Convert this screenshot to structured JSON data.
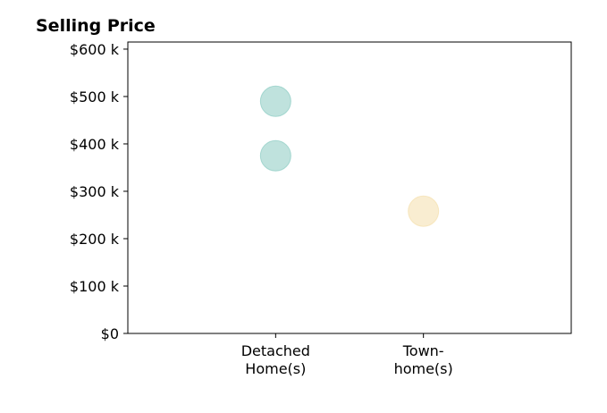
{
  "chart_data": {
    "type": "scatter",
    "title": "Selling Price",
    "xlabel": "",
    "ylabel": "",
    "categories": [
      [
        "Detached",
        "Home(s)"
      ],
      [
        "Town-",
        "home(s)"
      ]
    ],
    "xlim": [
      -1,
      2
    ],
    "ylim": [
      0,
      615000
    ],
    "y_ticks": [
      0,
      100000,
      200000,
      300000,
      400000,
      500000,
      600000
    ],
    "y_tick_labels": [
      "$0",
      "$100 k",
      "$200 k",
      "$300 k",
      "$400 k",
      "$500 k",
      "$600 k"
    ],
    "grid": false,
    "points": [
      {
        "category": 0,
        "value": 490000,
        "color": "#7fc6bc"
      },
      {
        "category": 0,
        "value": 375000,
        "color": "#7fc6bc"
      },
      {
        "category": 1,
        "value": 258000,
        "color": "#f3dca4"
      }
    ]
  }
}
